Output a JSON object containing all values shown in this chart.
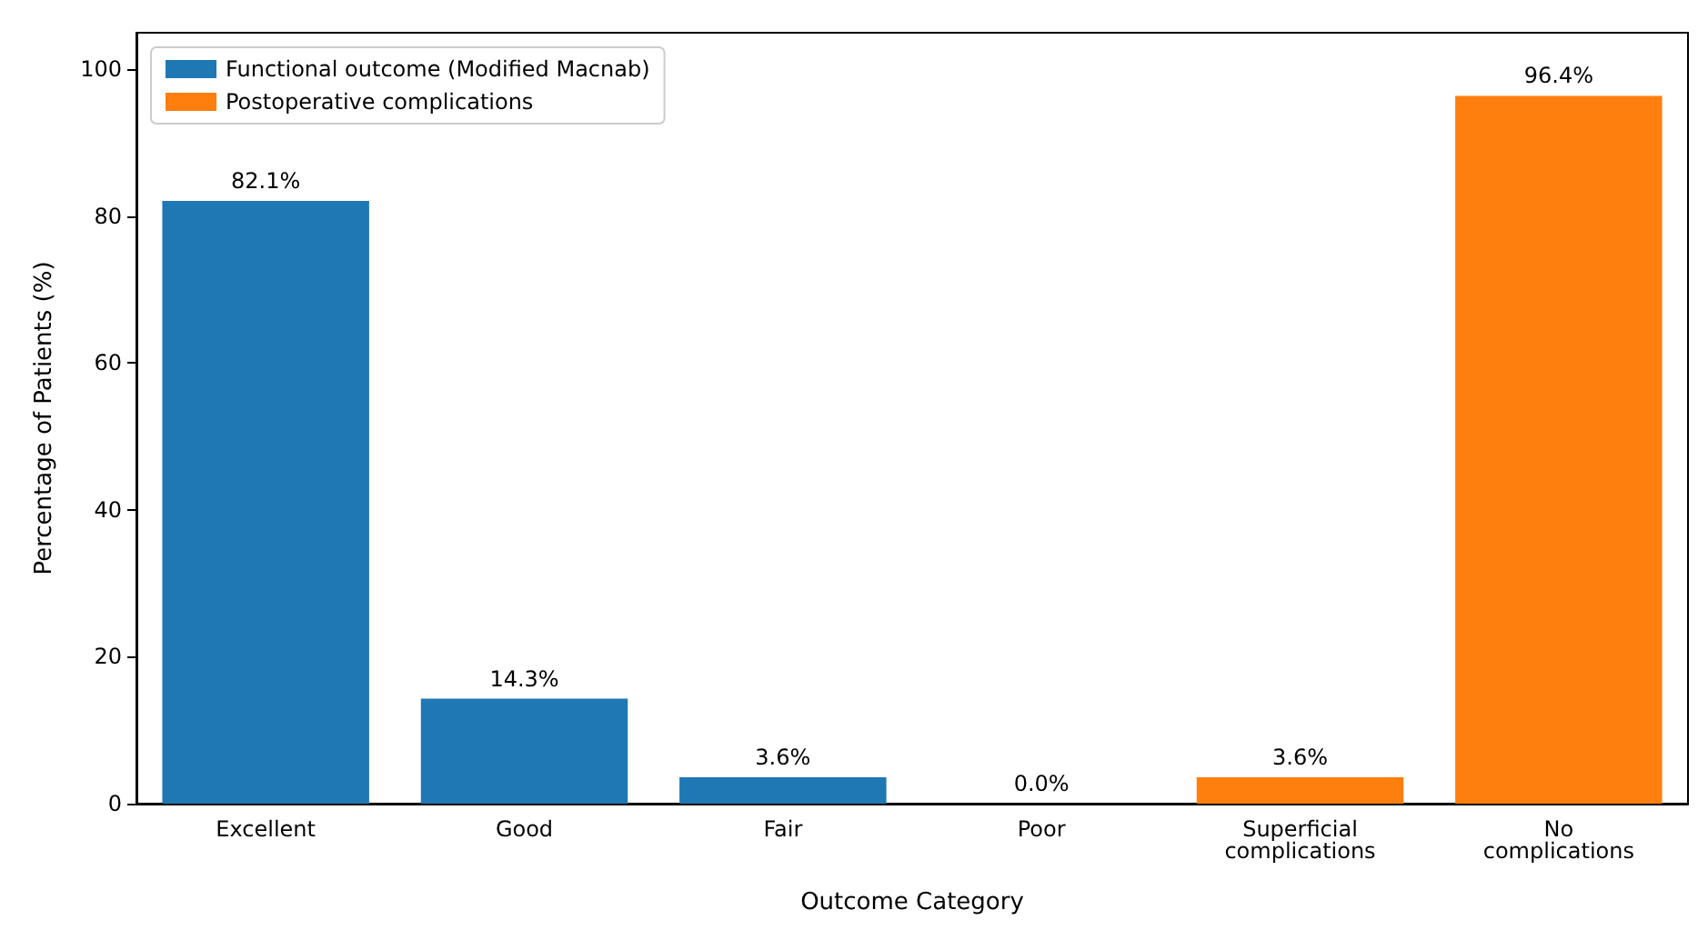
{
  "chart_data": {
    "type": "bar",
    "xlabel": "Outcome Category",
    "ylabel": "Percentage of Patients (%)",
    "categories": [
      "Excellent",
      "Good",
      "Fair",
      "Poor",
      "Superficial\ncomplications",
      "No\ncomplications"
    ],
    "series": [
      {
        "name": "Functional outcome (Modified Macnab)",
        "color": "#1f77b4",
        "values": [
          82.1,
          14.3,
          3.6,
          0.0,
          null,
          null
        ],
        "value_labels": [
          "82.1%",
          "14.3%",
          "3.6%",
          "0.0%",
          null,
          null
        ]
      },
      {
        "name": "Postoperative complications",
        "color": "#ff7f0e",
        "values": [
          null,
          null,
          null,
          null,
          3.6,
          96.4
        ],
        "value_labels": [
          null,
          null,
          null,
          null,
          "3.6%",
          "96.4%"
        ]
      }
    ],
    "ylim": [
      0,
      105
    ],
    "yticks": [
      0,
      20,
      40,
      60,
      80,
      100
    ],
    "grid": false,
    "legend": "top left"
  }
}
